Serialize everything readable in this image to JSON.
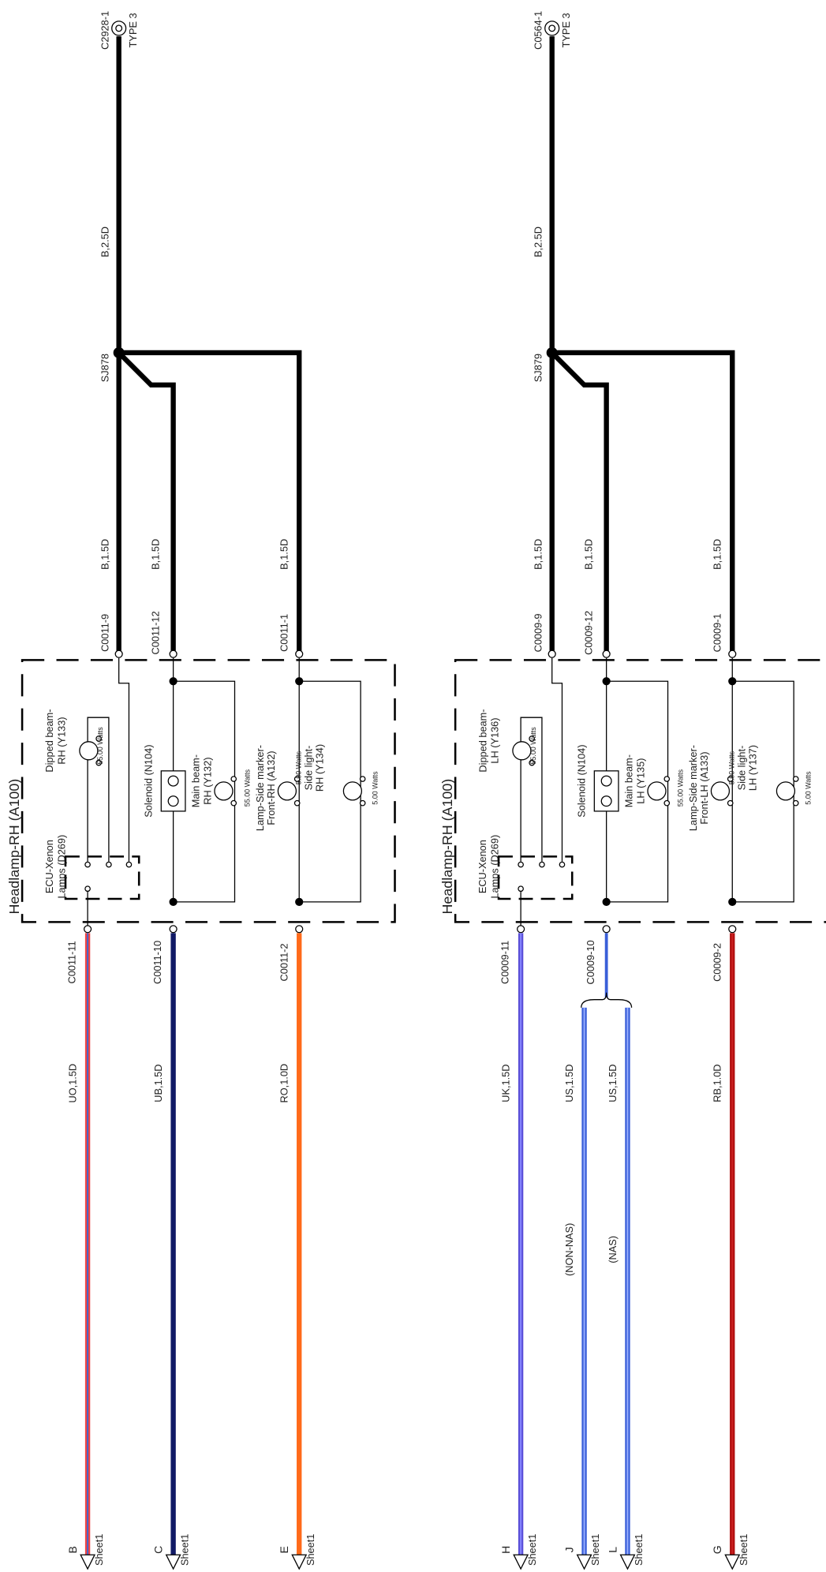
{
  "sections": [
    {
      "ground": {
        "id": "C2928-1",
        "type": "TYPE 3"
      },
      "main_wire": "B,2.5D",
      "splice": "SJ878",
      "title": "Headlamp-RH (A100)",
      "upper_wires": [
        {
          "spec": "B,1.5D",
          "connector": "C0011-9"
        },
        {
          "spec": "B,1.5D",
          "connector": "C0011-12"
        },
        {
          "spec": "B,1.5D",
          "connector": "C0011-1"
        }
      ],
      "components": [
        {
          "lines": [
            "ECU-Xenon",
            "Lamps (D269)"
          ]
        },
        {
          "lines": [
            "Dipped beam-",
            "RH (Y133)"
          ],
          "rating": "55.00 Watts"
        },
        {
          "lines": [
            "Solenoid (N104)"
          ]
        },
        {
          "lines": [
            "Main beam-",
            "RH (Y132)"
          ],
          "rating": "55.00 Watts"
        },
        {
          "lines": [
            "Lamp-Side marker-",
            "Front-RH (A132)"
          ],
          "rating": "5.00 Watts"
        },
        {
          "lines": [
            "Side light-",
            "RH (Y134)"
          ],
          "rating": "5.00 Watts"
        }
      ],
      "lower_connectors": [
        "C0011-11",
        "C0011-10",
        "C0011-2"
      ],
      "lower_wires": [
        {
          "spec": "UO,1.5D",
          "destination": "B",
          "sheet": "Sheet1"
        },
        {
          "spec": "UB,1.5D",
          "destination": "C",
          "sheet": "Sheet1"
        },
        {
          "spec": "RO,1.0D",
          "destination": "E",
          "sheet": "Sheet1"
        }
      ]
    },
    {
      "ground": {
        "id": "C0564-1",
        "type": "TYPE 3"
      },
      "main_wire": "B,2.5D",
      "splice": "SJ879",
      "title": "Headlamp-RH (A100)",
      "upper_wires": [
        {
          "spec": "B,1.5D",
          "connector": "C0009-9"
        },
        {
          "spec": "B,1.5D",
          "connector": "C0009-12"
        },
        {
          "spec": "B,1.5D",
          "connector": "C0009-1"
        }
      ],
      "components": [
        {
          "lines": [
            "ECU-Xenon",
            "Lamps (D269)"
          ]
        },
        {
          "lines": [
            "Dipped beam-",
            "LH (Y136)"
          ],
          "rating": "55.00 Watts"
        },
        {
          "lines": [
            "Solenoid (N104)"
          ]
        },
        {
          "lines": [
            "Main beam-",
            "LH (Y135)"
          ],
          "rating": "55.00 Watts"
        },
        {
          "lines": [
            "Lamp-Side marker-",
            "Front-LH (A133)"
          ],
          "rating": "5.00 Watts"
        },
        {
          "lines": [
            "Side light-",
            "LH (Y137)"
          ],
          "rating": "5.00 Watts"
        }
      ],
      "lower_connectors": [
        "C0009-11",
        "C0009-10",
        "C0009-2"
      ],
      "lower_wires": [
        {
          "spec": "UK,1.5D",
          "destination": "H",
          "sheet": "Sheet1"
        },
        {
          "spec": "US,1.5D",
          "variant": "(NON-NAS)",
          "destination": "J",
          "sheet": "Sheet1"
        },
        {
          "spec": "US,1.5D",
          "variant": "(NAS)",
          "destination": "L",
          "sheet": "Sheet1"
        },
        {
          "spec": "RB,1.0D",
          "destination": "G",
          "sheet": "Sheet1"
        }
      ]
    }
  ]
}
